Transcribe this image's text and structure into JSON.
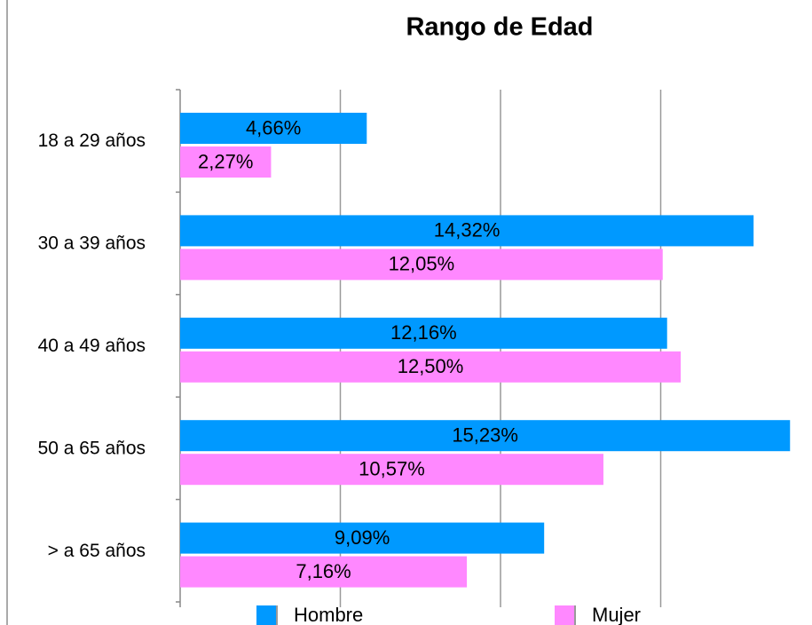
{
  "chart_data": {
    "type": "bar",
    "orientation": "horizontal",
    "title": "Rango de Edad",
    "categories": [
      "18 a 29 años",
      "30 a 39 años",
      "40 a 49 años",
      "50 a 65 años",
      "> a 65 años"
    ],
    "series": [
      {
        "name": "Hombre",
        "color": "#0099ff",
        "values": [
          4.66,
          14.32,
          12.16,
          15.23,
          9.09
        ],
        "value_labels": [
          "4,66%",
          "14,32%",
          "12,16%",
          "15,23%",
          "9,09%"
        ]
      },
      {
        "name": "Mujer",
        "color": "#ff88ff",
        "values": [
          2.27,
          12.05,
          12.5,
          10.57,
          7.16
        ],
        "value_labels": [
          "2,27%",
          "12,05%",
          "12,50%",
          "10,57%",
          "7,16%"
        ]
      }
    ],
    "xlim": [
      0,
      16
    ],
    "xticks": [
      0,
      4,
      8,
      12
    ],
    "grid": true,
    "legend": "bottom"
  }
}
